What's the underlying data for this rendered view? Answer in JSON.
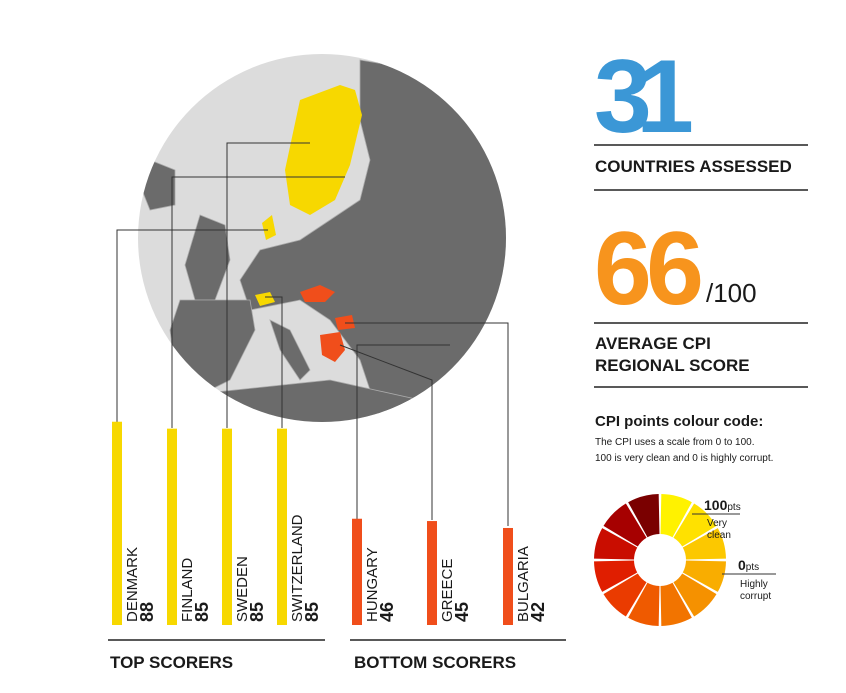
{
  "chart_data": {
    "type": "bar",
    "categories": [
      "DENMARK",
      "FINLAND",
      "SWEDEN",
      "SWITZERLAND",
      "HUNGARY",
      "GREECE",
      "BULGARIA"
    ],
    "values": [
      88,
      85,
      85,
      85,
      46,
      45,
      42
    ],
    "colors": [
      "#f7d800",
      "#f7d800",
      "#f7d800",
      "#f7d800",
      "#f04e1b",
      "#f04e1b",
      "#f04e1b"
    ],
    "ylim": [
      0,
      100
    ]
  },
  "groups": {
    "top": "TOP SCORERS",
    "bottom": "BOTTOM SCORERS"
  },
  "stats": {
    "countries": "31",
    "countries_label": "COUNTRIES  ASSESSED",
    "average": "66",
    "average_suffix": "/100",
    "average_label_1": "AVERAGE CPI",
    "average_label_2": "REGIONAL SCORE"
  },
  "colour_code": {
    "title": "CPI points colour code:",
    "line_1": "The CPI uses a scale from 0 to 100.",
    "line_2": "100 is very clean and 0 is highly corrupt.",
    "top_value": "100",
    "top_unit": "pts",
    "top_desc_1": "Very",
    "top_desc_2": "clean",
    "bottom_value": "0",
    "bottom_unit": "pts",
    "bottom_desc_1": "Highly",
    "bottom_desc_2": "corrupt",
    "colors": [
      "#fff200",
      "#ffe100",
      "#fcc800",
      "#f9ad00",
      "#f59100",
      "#f27400",
      "#ef5a00",
      "#ea3b00",
      "#e01e00",
      "#c90d00",
      "#a60000",
      "#7a0000"
    ]
  }
}
